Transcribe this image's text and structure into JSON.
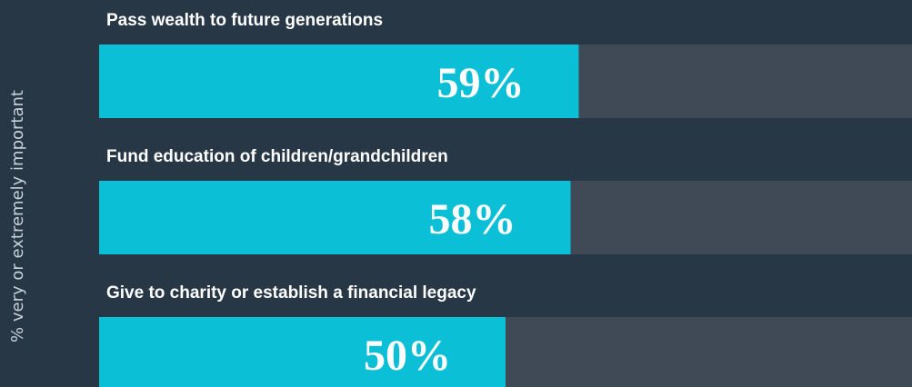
{
  "chart_data": {
    "type": "bar",
    "orientation": "horizontal",
    "ylabel": "% very or extremely important",
    "categories": [
      "Pass wealth to future generations",
      "Fund education of children/grandchildren",
      "Give to charity or establish a financial legacy"
    ],
    "values": [
      59,
      58,
      50
    ],
    "value_labels": [
      "59%",
      "58%",
      "50%"
    ],
    "color": "#0bbfd6",
    "xlim": [
      0,
      100
    ]
  }
}
